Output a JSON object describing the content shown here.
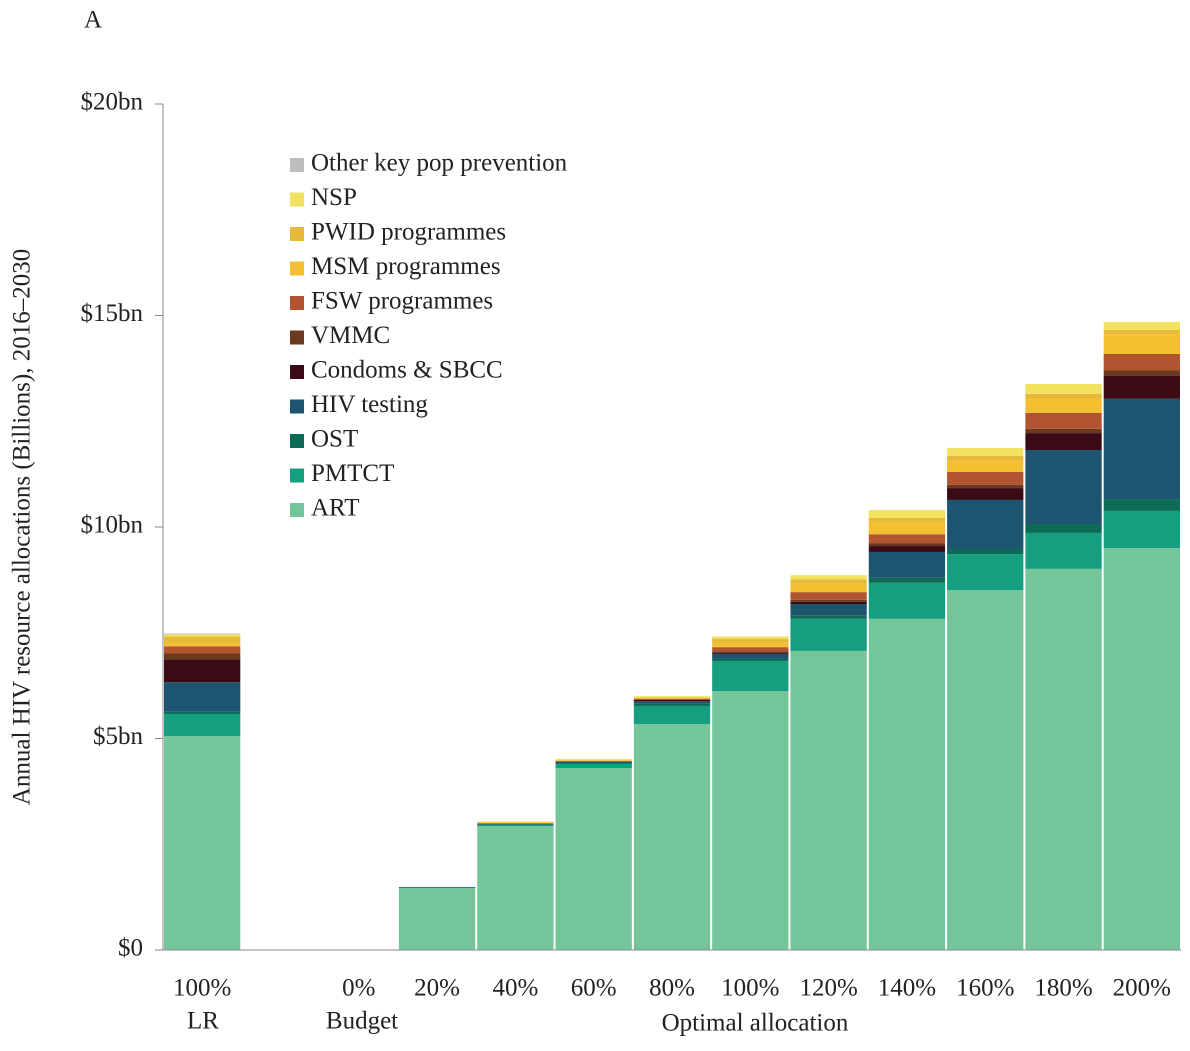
{
  "chart_data": {
    "type": "stacked-bar",
    "panel_label": "A",
    "y_label": "Annual HIV resource allocations (Billions), 2016–2030",
    "categories": [
      "100%",
      null,
      "0%",
      "20%",
      "40%",
      "60%",
      "80%",
      "100%",
      "120%",
      "140%",
      "160%",
      "180%",
      "200%"
    ],
    "group_labels": [
      "LR",
      "Budget",
      "Optimal allocation"
    ],
    "ylim": [
      0,
      20
    ],
    "yticks": [
      {
        "value": 0,
        "label": "$0"
      },
      {
        "value": 5,
        "label": "$5bn"
      },
      {
        "value": 10,
        "label": "$10bn"
      },
      {
        "value": 15,
        "label": "$15bn"
      },
      {
        "value": 20,
        "label": "$20bn"
      }
    ],
    "series": [
      {
        "name": "ART",
        "color": "#74c69a",
        "values": [
          5.06,
          null,
          0,
          1.47,
          2.93,
          4.3,
          5.34,
          6.12,
          7.07,
          7.83,
          8.51,
          9.01,
          9.5
        ]
      },
      {
        "name": "PMTCT",
        "color": "#169e80",
        "values": [
          0.52,
          null,
          0,
          0,
          0.03,
          0.1,
          0.43,
          0.71,
          0.76,
          0.85,
          0.85,
          0.85,
          0.88
        ]
      },
      {
        "name": "OST",
        "color": "#0b6b55",
        "values": [
          0.05,
          null,
          0,
          0,
          0,
          0,
          0.05,
          0.05,
          0.07,
          0.12,
          0.12,
          0.2,
          0.28
        ]
      },
      {
        "name": "HIV testing",
        "color": "#1d5570",
        "values": [
          0.7,
          null,
          0,
          0.02,
          0.02,
          0.05,
          0.06,
          0.12,
          0.28,
          0.61,
          1.16,
          1.76,
          2.37
        ]
      },
      {
        "name": "Condoms & SBCC",
        "color": "#3a0a15",
        "values": [
          0.54,
          null,
          0,
          0,
          0,
          0,
          0.03,
          0.03,
          0.05,
          0.14,
          0.28,
          0.4,
          0.54
        ]
      },
      {
        "name": "VMMC",
        "color": "#6b3a1e",
        "values": [
          0.14,
          null,
          0,
          0,
          0,
          0,
          0,
          0.03,
          0.05,
          0.06,
          0.08,
          0.1,
          0.13
        ]
      },
      {
        "name": "FSW programmes",
        "color": "#b05530",
        "values": [
          0.17,
          null,
          0,
          0,
          0.02,
          0.02,
          0.03,
          0.1,
          0.18,
          0.22,
          0.3,
          0.38,
          0.39
        ]
      },
      {
        "name": "MSM programmes",
        "color": "#f2c030",
        "values": [
          0.09,
          null,
          0,
          0,
          0.02,
          0.02,
          0.03,
          0.1,
          0.2,
          0.29,
          0.28,
          0.35,
          0.47
        ]
      },
      {
        "name": "PWID programmes",
        "color": "#e6b93a",
        "values": [
          0.14,
          null,
          0,
          0,
          0,
          0,
          0,
          0.1,
          0.1,
          0.1,
          0.1,
          0.1,
          0.1
        ]
      },
      {
        "name": "NSP",
        "color": "#f2e260",
        "values": [
          0.05,
          null,
          0,
          0,
          0.02,
          0.03,
          0.03,
          0.05,
          0.1,
          0.18,
          0.19,
          0.23,
          0.19
        ]
      },
      {
        "name": "Other key pop prevention",
        "color": "#bdbdbd",
        "values": [
          0.02,
          null,
          0,
          0,
          0,
          0,
          0,
          0,
          0,
          0,
          0,
          0,
          0
        ]
      }
    ]
  }
}
